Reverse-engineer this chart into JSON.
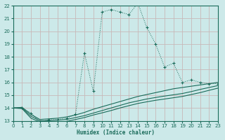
{
  "xlabel": "Humidex (Indice chaleur)",
  "background_color": "#cce9e9",
  "grid_color": "#c0d8d8",
  "line_color": "#1a6b5a",
  "x_min": 0,
  "x_max": 23,
  "y_min": 13,
  "y_max": 22,
  "line1_x": [
    0,
    1,
    2,
    3,
    4,
    5,
    6,
    7,
    8,
    9,
    10,
    11,
    12,
    13,
    14,
    15,
    16,
    17,
    18,
    19,
    20,
    21,
    22,
    23
  ],
  "line1_y": [
    14.0,
    14.0,
    13.6,
    12.9,
    13.1,
    13.1,
    13.2,
    13.5,
    18.3,
    15.3,
    21.5,
    21.7,
    21.5,
    21.3,
    22.2,
    20.3,
    19.0,
    17.2,
    17.5,
    16.0,
    16.2,
    16.0,
    15.9,
    15.9
  ],
  "line2_x": [
    0,
    1,
    2,
    3,
    4,
    5,
    6,
    7,
    8,
    9,
    10,
    11,
    12,
    13,
    14,
    15,
    16,
    17,
    18,
    19,
    20,
    21,
    22,
    23
  ],
  "line2_y": [
    14.0,
    14.05,
    13.5,
    13.1,
    13.15,
    13.2,
    13.3,
    13.45,
    13.65,
    13.9,
    14.1,
    14.3,
    14.5,
    14.7,
    14.9,
    15.05,
    15.2,
    15.35,
    15.5,
    15.6,
    15.7,
    15.8,
    15.9,
    16.0
  ],
  "line3_x": [
    0,
    1,
    2,
    3,
    4,
    5,
    6,
    7,
    8,
    9,
    10,
    11,
    12,
    13,
    14,
    15,
    16,
    17,
    18,
    19,
    20,
    21,
    22,
    23
  ],
  "line3_y": [
    14.0,
    14.0,
    13.35,
    13.0,
    13.0,
    13.05,
    13.1,
    13.25,
    13.4,
    13.6,
    13.8,
    14.0,
    14.2,
    14.4,
    14.55,
    14.7,
    14.82,
    14.93,
    15.03,
    15.13,
    15.28,
    15.45,
    15.6,
    15.75
  ],
  "line4_x": [
    0,
    1,
    2,
    3,
    4,
    5,
    6,
    7,
    8,
    9,
    10,
    11,
    12,
    13,
    14,
    15,
    16,
    17,
    18,
    19,
    20,
    21,
    22,
    23
  ],
  "line4_y": [
    14.0,
    13.95,
    13.2,
    12.9,
    12.88,
    12.9,
    12.95,
    13.1,
    13.25,
    13.45,
    13.62,
    13.8,
    14.0,
    14.18,
    14.35,
    14.48,
    14.6,
    14.7,
    14.8,
    14.9,
    15.05,
    15.2,
    15.38,
    15.55
  ]
}
